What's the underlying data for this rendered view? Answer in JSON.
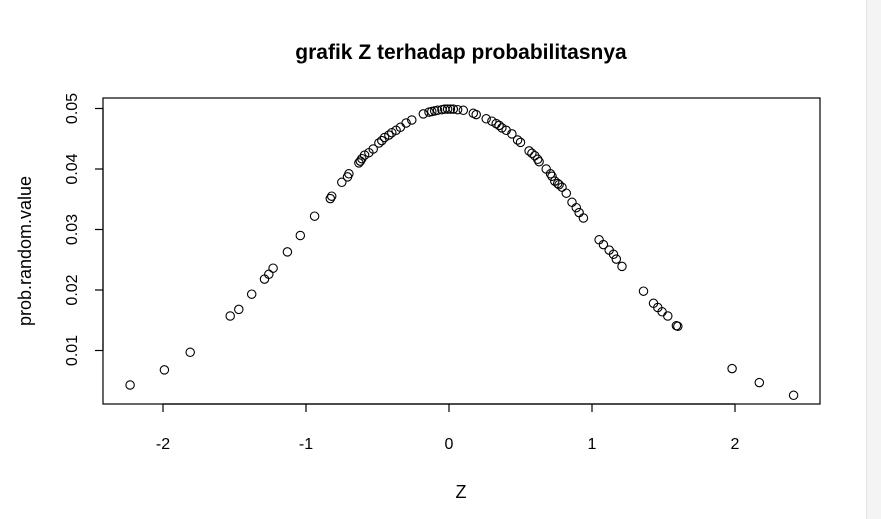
{
  "chart_data": {
    "type": "scatter",
    "title": "grafik Z terhadap probabilitasnya",
    "xlabel": "Z",
    "ylabel": "prob.random.value",
    "xlim": [
      -2.35,
      2.6
    ],
    "ylim": [
      0.0,
      0.0515
    ],
    "x_ticks": [
      -2,
      -1,
      0,
      1,
      2
    ],
    "x_tick_labels": [
      "-2",
      "-1",
      "0",
      "1",
      "2"
    ],
    "y_ticks": [
      0.01,
      0.02,
      0.03,
      0.04,
      0.05
    ],
    "y_tick_labels": [
      "0.01",
      "0.02",
      "0.03",
      "0.04",
      "0.05"
    ],
    "grid": false,
    "legend": "none",
    "marker": "open-circle",
    "marker_color": "#000000",
    "points": [
      [
        -2.23,
        0.0043
      ],
      [
        -1.99,
        0.0068
      ],
      [
        -1.81,
        0.0097
      ],
      [
        -1.53,
        0.0157
      ],
      [
        -1.47,
        0.0168
      ],
      [
        -1.38,
        0.0193
      ],
      [
        -1.29,
        0.0218
      ],
      [
        -1.26,
        0.0226
      ],
      [
        -1.23,
        0.0236
      ],
      [
        -1.13,
        0.0263
      ],
      [
        -1.04,
        0.029
      ],
      [
        -0.94,
        0.0322
      ],
      [
        -0.83,
        0.0351
      ],
      [
        -0.82,
        0.0355
      ],
      [
        -0.75,
        0.0378
      ],
      [
        -0.71,
        0.0387
      ],
      [
        -0.7,
        0.0392
      ],
      [
        -0.63,
        0.041
      ],
      [
        -0.62,
        0.0413
      ],
      [
        -0.61,
        0.0417
      ],
      [
        -0.59,
        0.0423
      ],
      [
        -0.56,
        0.0427
      ],
      [
        -0.53,
        0.0433
      ],
      [
        -0.49,
        0.0443
      ],
      [
        -0.47,
        0.0447
      ],
      [
        -0.45,
        0.0452
      ],
      [
        -0.42,
        0.0456
      ],
      [
        -0.4,
        0.046
      ],
      [
        -0.37,
        0.0464
      ],
      [
        -0.34,
        0.0469
      ],
      [
        -0.3,
        0.0476
      ],
      [
        -0.26,
        0.0481
      ],
      [
        -0.18,
        0.0491
      ],
      [
        -0.14,
        0.0494
      ],
      [
        -0.12,
        0.0495
      ],
      [
        -0.1,
        0.0496
      ],
      [
        -0.08,
        0.0497
      ],
      [
        -0.05,
        0.0498
      ],
      [
        -0.03,
        0.0499
      ],
      [
        -0.01,
        0.0499
      ],
      [
        0.01,
        0.0499
      ],
      [
        0.03,
        0.0499
      ],
      [
        0.06,
        0.0498
      ],
      [
        0.1,
        0.0497
      ],
      [
        0.17,
        0.0492
      ],
      [
        0.19,
        0.049
      ],
      [
        0.26,
        0.0483
      ],
      [
        0.3,
        0.0479
      ],
      [
        0.33,
        0.0475
      ],
      [
        0.35,
        0.0472
      ],
      [
        0.37,
        0.0468
      ],
      [
        0.4,
        0.0464
      ],
      [
        0.44,
        0.0458
      ],
      [
        0.48,
        0.0448
      ],
      [
        0.5,
        0.0444
      ],
      [
        0.56,
        0.043
      ],
      [
        0.58,
        0.0426
      ],
      [
        0.6,
        0.0422
      ],
      [
        0.62,
        0.0416
      ],
      [
        0.63,
        0.0412
      ],
      [
        0.68,
        0.04
      ],
      [
        0.71,
        0.0392
      ],
      [
        0.72,
        0.0388
      ],
      [
        0.74,
        0.038
      ],
      [
        0.76,
        0.0376
      ],
      [
        0.77,
        0.0374
      ],
      [
        0.79,
        0.037
      ],
      [
        0.82,
        0.036
      ],
      [
        0.86,
        0.0345
      ],
      [
        0.89,
        0.0336
      ],
      [
        0.91,
        0.0328
      ],
      [
        0.94,
        0.0319
      ],
      [
        1.05,
        0.0283
      ],
      [
        1.08,
        0.0275
      ],
      [
        1.12,
        0.0266
      ],
      [
        1.15,
        0.0259
      ],
      [
        1.17,
        0.0251
      ],
      [
        1.21,
        0.0239
      ],
      [
        1.36,
        0.0198
      ],
      [
        1.43,
        0.0178
      ],
      [
        1.46,
        0.0171
      ],
      [
        1.49,
        0.0164
      ],
      [
        1.53,
        0.0157
      ],
      [
        1.59,
        0.0141
      ],
      [
        1.6,
        0.014
      ],
      [
        1.98,
        0.007
      ],
      [
        2.17,
        0.0047
      ],
      [
        2.41,
        0.0026
      ]
    ]
  }
}
